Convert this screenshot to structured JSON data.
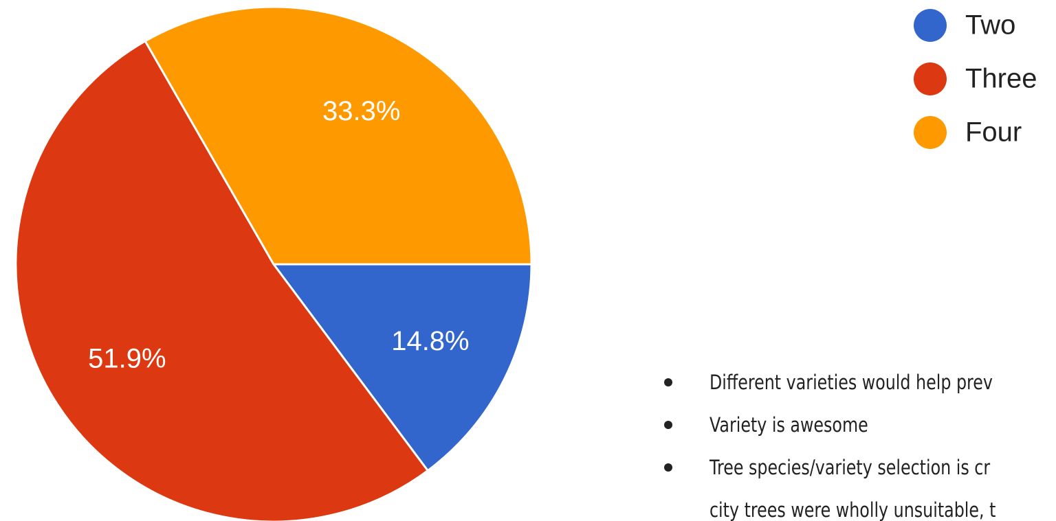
{
  "chart_data": {
    "type": "pie",
    "categories": [
      "Two",
      "Three",
      "Four"
    ],
    "values": [
      14.8,
      51.9,
      33.3
    ],
    "value_labels": [
      "14.8%",
      "51.9%",
      "33.3%"
    ],
    "colors": [
      "#3366cc",
      "#dc3912",
      "#ff9900"
    ],
    "legend": "top-right"
  },
  "notes": [
    {
      "lines": [
        "Different varieties would help prev"
      ]
    },
    {
      "lines": [
        "Variety is awesome"
      ]
    },
    {
      "lines": [
        "Tree species/variety selection is cr",
        "city trees were wholly unsuitable, t"
      ]
    }
  ]
}
